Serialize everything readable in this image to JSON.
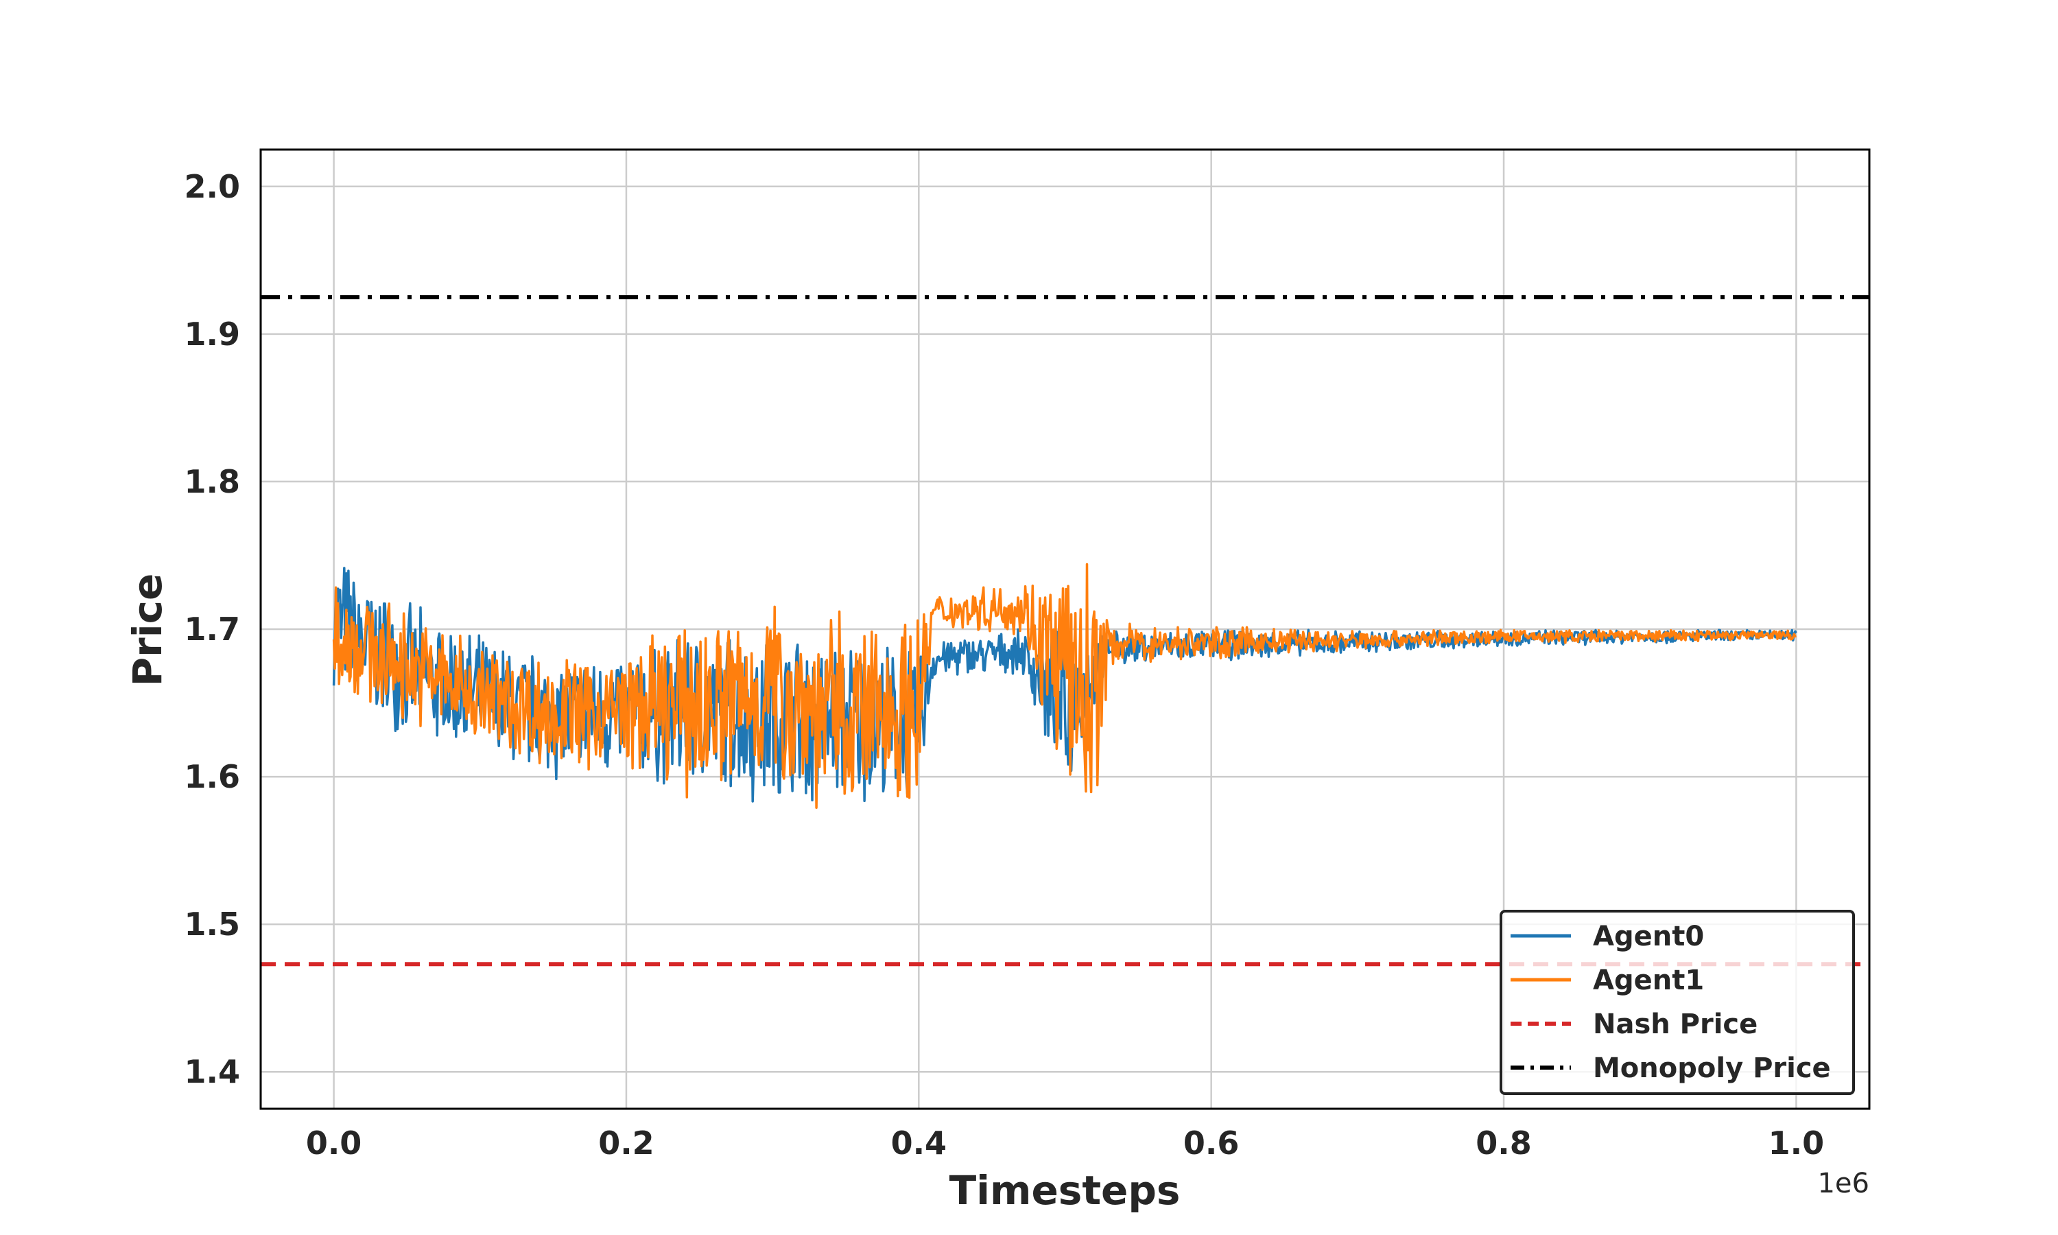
{
  "chart_data": {
    "type": "line",
    "xlabel": "Timesteps",
    "ylabel": "Price",
    "x_offset_label": "1e6",
    "xlim": [
      -0.05,
      1.05
    ],
    "ylim": [
      1.375,
      2.025
    ],
    "xticks": [
      0.0,
      0.2,
      0.4,
      0.6,
      0.8,
      1.0
    ],
    "xtick_labels": [
      "0.0",
      "0.2",
      "0.4",
      "0.6",
      "0.8",
      "1.0"
    ],
    "yticks": [
      1.4,
      1.5,
      1.6,
      1.7,
      1.8,
      1.9,
      2.0
    ],
    "ytick_labels": [
      "1.4",
      "1.5",
      "1.6",
      "1.7",
      "1.8",
      "1.9",
      "2.0"
    ],
    "grid": true,
    "legend_position": "lower-right",
    "series": [
      {
        "name": "Agent0",
        "color": "#1f77b4",
        "style": "solid",
        "x_unit": "1e6 timesteps",
        "envelope": [
          {
            "x": 0.0,
            "low": 1.66,
            "high": 1.76
          },
          {
            "x": 0.02,
            "low": 1.64,
            "high": 1.74
          },
          {
            "x": 0.05,
            "low": 1.625,
            "high": 1.72
          },
          {
            "x": 0.1,
            "low": 1.605,
            "high": 1.7
          },
          {
            "x": 0.15,
            "low": 1.595,
            "high": 1.685
          },
          {
            "x": 0.2,
            "low": 1.595,
            "high": 1.69
          },
          {
            "x": 0.25,
            "low": 1.585,
            "high": 1.705
          },
          {
            "x": 0.3,
            "low": 1.575,
            "high": 1.705
          },
          {
            "x": 0.35,
            "low": 1.575,
            "high": 1.7
          },
          {
            "x": 0.4,
            "low": 1.58,
            "high": 1.69
          },
          {
            "x": 0.41,
            "low": 1.665,
            "high": 1.695
          },
          {
            "x": 0.47,
            "low": 1.67,
            "high": 1.7
          },
          {
            "x": 0.5,
            "low": 1.58,
            "high": 1.705
          },
          {
            "x": 0.53,
            "low": 1.675,
            "high": 1.7
          },
          {
            "x": 0.7,
            "low": 1.682,
            "high": 1.7
          },
          {
            "x": 0.8,
            "low": 1.688,
            "high": 1.7
          },
          {
            "x": 1.0,
            "low": 1.692,
            "high": 1.7
          }
        ]
      },
      {
        "name": "Agent1",
        "color": "#ff7f0e",
        "style": "solid",
        "x_unit": "1e6 timesteps",
        "envelope": [
          {
            "x": 0.0,
            "low": 1.65,
            "high": 1.75
          },
          {
            "x": 0.02,
            "low": 1.645,
            "high": 1.73
          },
          {
            "x": 0.05,
            "low": 1.635,
            "high": 1.715
          },
          {
            "x": 0.1,
            "low": 1.615,
            "high": 1.695
          },
          {
            "x": 0.15,
            "low": 1.6,
            "high": 1.685
          },
          {
            "x": 0.2,
            "low": 1.6,
            "high": 1.69
          },
          {
            "x": 0.25,
            "low": 1.58,
            "high": 1.715
          },
          {
            "x": 0.3,
            "low": 1.59,
            "high": 1.73
          },
          {
            "x": 0.35,
            "low": 1.565,
            "high": 1.715
          },
          {
            "x": 0.4,
            "low": 1.58,
            "high": 1.72
          },
          {
            "x": 0.41,
            "low": 1.7,
            "high": 1.725
          },
          {
            "x": 0.47,
            "low": 1.695,
            "high": 1.735
          },
          {
            "x": 0.5,
            "low": 1.585,
            "high": 1.75
          },
          {
            "x": 0.52,
            "low": 1.56,
            "high": 1.75
          },
          {
            "x": 0.53,
            "low": 1.675,
            "high": 1.705
          },
          {
            "x": 0.7,
            "low": 1.685,
            "high": 1.7
          },
          {
            "x": 0.8,
            "low": 1.69,
            "high": 1.7
          },
          {
            "x": 1.0,
            "low": 1.692,
            "high": 1.7
          }
        ]
      },
      {
        "name": "Nash Price",
        "color": "#d62728",
        "style": "dashed",
        "value": 1.473
      },
      {
        "name": "Monopoly Price",
        "color": "#000000",
        "style": "dashdot",
        "value": 1.925
      }
    ]
  }
}
